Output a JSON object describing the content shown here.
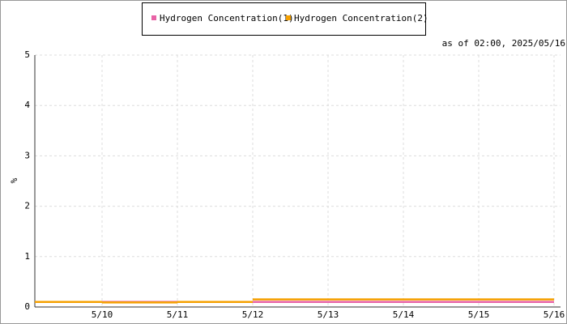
{
  "chart_data": {
    "type": "step-line",
    "annotation": "as of 02:00, 2025/05/16",
    "y_label": "%",
    "x": [
      "5/10",
      "5/11",
      "5/12",
      "5/13",
      "5/14",
      "5/15",
      "5/16"
    ],
    "series": [
      {
        "name": "Hydrogen Concentration(1)",
        "color": "#e863a6",
        "values": [
          0.1,
          0.1,
          0.1,
          0.1,
          0.1,
          0.1,
          0.1
        ]
      },
      {
        "name": "Hydrogen Concentration(2)",
        "color": "#f5a000",
        "values": [
          0.1,
          0.09,
          0.1,
          0.15,
          0.15,
          0.15,
          0.15
        ]
      }
    ],
    "ylim": [
      0,
      5
    ],
    "yticks": [
      0,
      1,
      2,
      3,
      4,
      5
    ],
    "grid": true
  }
}
